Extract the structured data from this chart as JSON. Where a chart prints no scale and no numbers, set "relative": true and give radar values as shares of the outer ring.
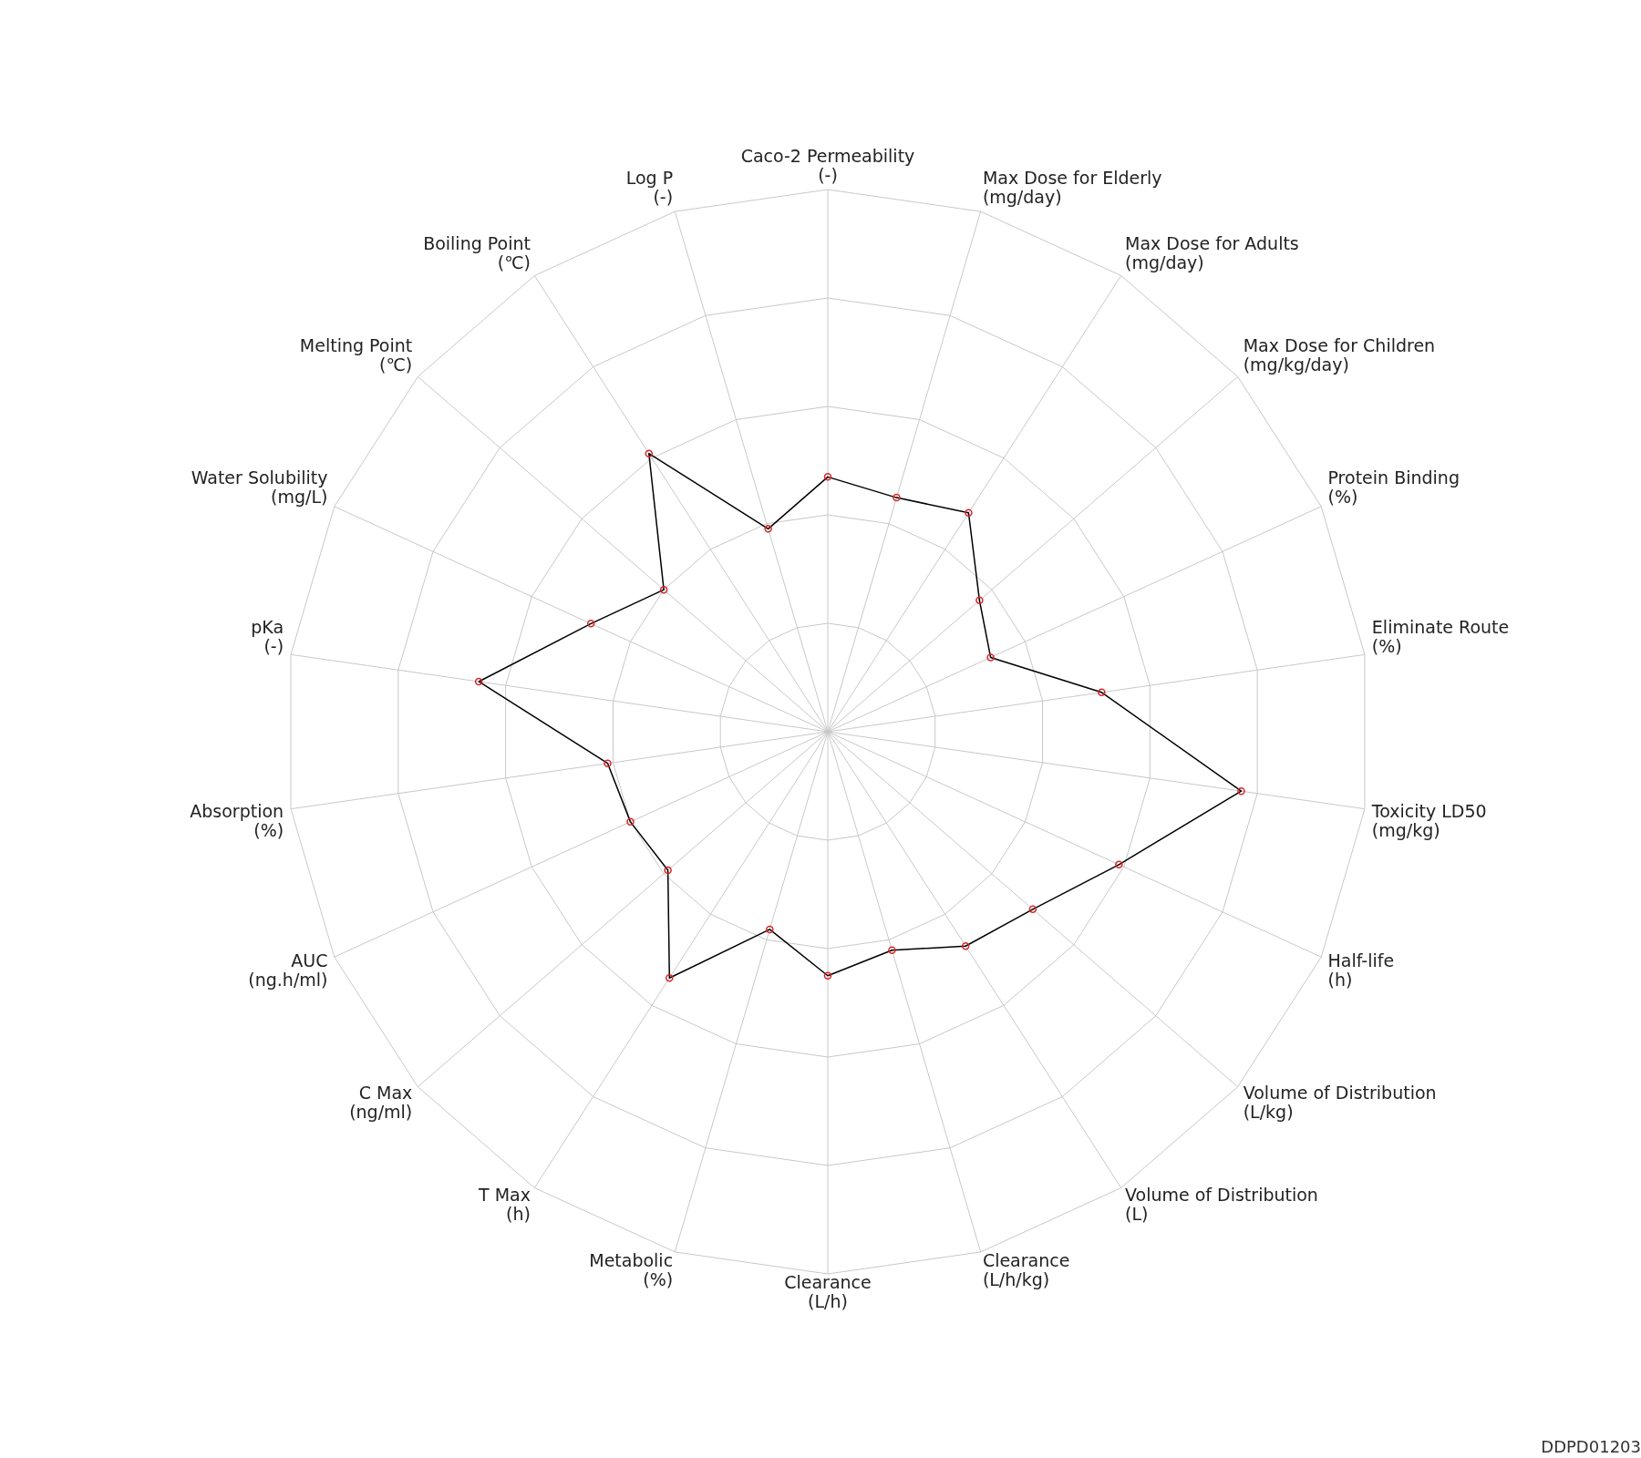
{
  "chart_data": {
    "type": "radar",
    "relative": true,
    "grid": true,
    "marker": "circle",
    "categories": [
      "Caco-2 Permeability\n(-)",
      "Max Dose for Elderly\n(mg/day)",
      "Max Dose for Adults\n(mg/day)",
      "Max Dose for Children\n(mg/kg/day)",
      "Protein Binding\n(%)",
      "Eliminate Route\n(%)",
      "Toxicity LD50\n(mg/kg)",
      "Half-life\n(h)",
      "Volume of Distribution\n(L/kg)",
      "Volume of Distribution\n(L)",
      "Clearance\n(L/h/kg)",
      "Clearance\n(L/h)",
      "Metabolic\n(%)",
      "T Max\n(h)",
      "C Max\n(ng/ml)",
      "AUC\n(ng.h/ml)",
      "Absorption\n(%)",
      "pKa\n(-)",
      "Water Solubility\n(mg/L)",
      "Melting Point\n(℃)",
      "Boiling Point\n(℃)",
      "Log P\n(-)"
    ],
    "series": [
      {
        "color": "#000000",
        "values": [
          0.47,
          0.45,
          0.48,
          0.37,
          0.33,
          0.51,
          0.77,
          0.59,
          0.5,
          0.47,
          0.42,
          0.45,
          0.38,
          0.54,
          0.39,
          0.4,
          0.41,
          0.65,
          0.48,
          0.4,
          0.61,
          0.39
        ]
      }
    ],
    "annotations": [
      "DDPD01203"
    ]
  }
}
